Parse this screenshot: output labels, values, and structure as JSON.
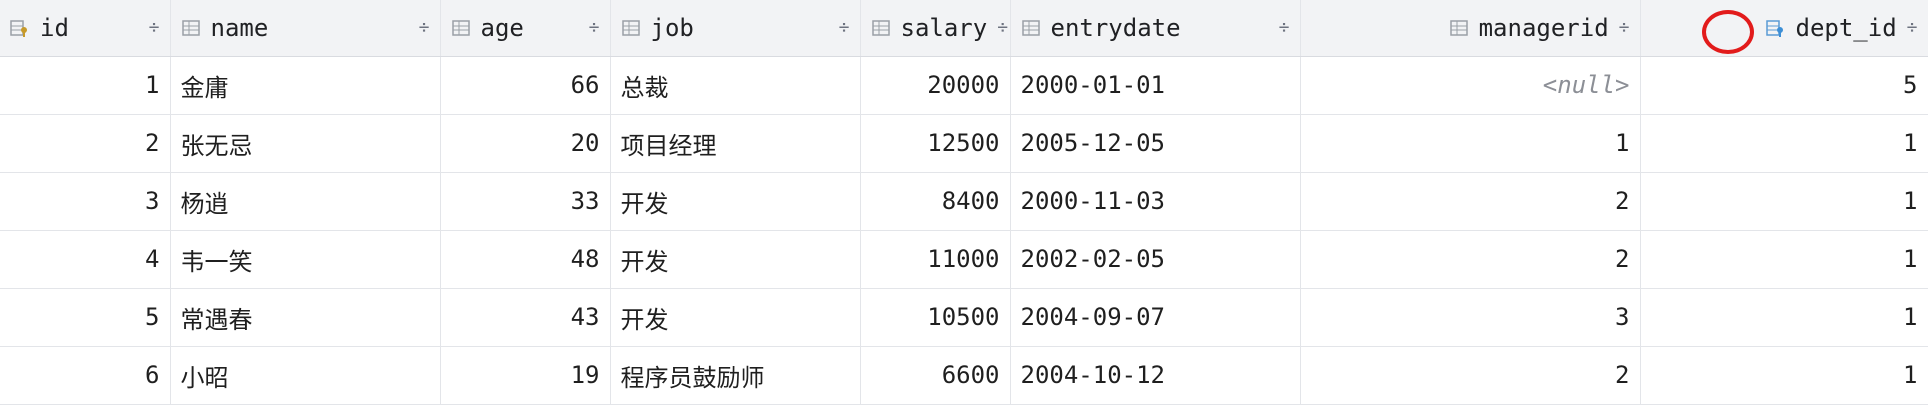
{
  "table": {
    "columns": [
      {
        "key": "id",
        "label": "id",
        "icon": "primary-key-column-icon",
        "align": "right"
      },
      {
        "key": "name",
        "label": "name",
        "icon": "column-icon",
        "align": "left"
      },
      {
        "key": "age",
        "label": "age",
        "icon": "column-icon",
        "align": "right"
      },
      {
        "key": "job",
        "label": "job",
        "icon": "column-icon",
        "align": "left"
      },
      {
        "key": "salary",
        "label": "salary",
        "icon": "column-icon",
        "align": "right"
      },
      {
        "key": "entrydate",
        "label": "entrydate",
        "icon": "column-icon",
        "align": "left"
      },
      {
        "key": "managerid",
        "label": "managerid",
        "icon": "column-icon",
        "align": "right"
      },
      {
        "key": "dept_id",
        "label": "dept_id",
        "icon": "foreign-key-column-icon",
        "align": "right"
      }
    ],
    "sort_glyph": "÷",
    "rows": [
      {
        "id": "1",
        "name": "金庸",
        "age": "66",
        "job": "总裁",
        "salary": "20000",
        "entrydate": "2000-01-01",
        "managerid": "<null>",
        "dept_id": "5"
      },
      {
        "id": "2",
        "name": "张无忌",
        "age": "20",
        "job": "项目经理",
        "salary": "12500",
        "entrydate": "2005-12-05",
        "managerid": "1",
        "dept_id": "1"
      },
      {
        "id": "3",
        "name": "杨逍",
        "age": "33",
        "job": "开发",
        "salary": "8400",
        "entrydate": "2000-11-03",
        "managerid": "2",
        "dept_id": "1"
      },
      {
        "id": "4",
        "name": "韦一笑",
        "age": "48",
        "job": "开发",
        "salary": "11000",
        "entrydate": "2002-02-05",
        "managerid": "2",
        "dept_id": "1"
      },
      {
        "id": "5",
        "name": "常遇春",
        "age": "43",
        "job": "开发",
        "salary": "10500",
        "entrydate": "2004-09-07",
        "managerid": "3",
        "dept_id": "1"
      },
      {
        "id": "6",
        "name": "小昭",
        "age": "19",
        "job": "程序员鼓励师",
        "salary": "6600",
        "entrydate": "2004-10-12",
        "managerid": "2",
        "dept_id": "1"
      }
    ]
  },
  "annotation": {
    "color": "#e21b1b",
    "target": "dept_id"
  },
  "colors": {
    "header_bg": "#f2f3f5",
    "grid_line": "#e3e5e9",
    "key_icon": "#c79a2a",
    "fk_icon": "#3d8fd6",
    "null_text": "#8c8f96"
  }
}
